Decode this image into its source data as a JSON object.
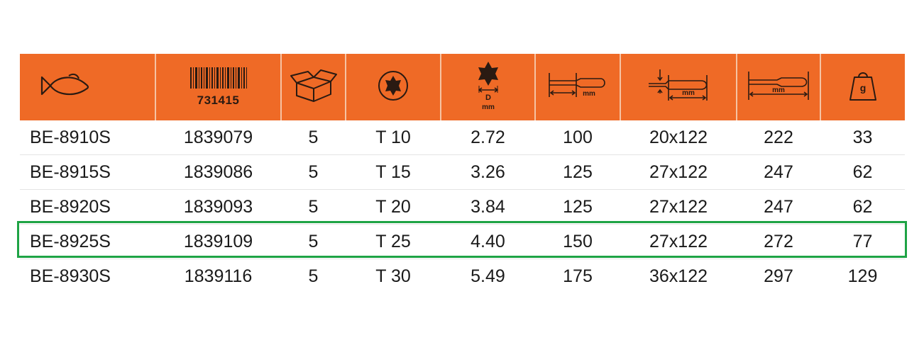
{
  "header": {
    "barcode_number": "731415",
    "icons": [
      "fish-icon",
      "barcode-icon",
      "package-box-icon",
      "torx-tip-icon",
      "torx-diameter-icon",
      "blade-length-icon",
      "handle-size-icon",
      "total-length-icon",
      "weight-icon"
    ],
    "diameter_label": "D",
    "unit_mm": "mm",
    "weight_label": "g"
  },
  "rows": [
    {
      "model": "BE-8910S",
      "ean": "1839079",
      "pack": "5",
      "torx": "T 10",
      "d": "2.72",
      "blade": "100",
      "handle": "20x122",
      "length": "222",
      "weight": "33"
    },
    {
      "model": "BE-8915S",
      "ean": "1839086",
      "pack": "5",
      "torx": "T 15",
      "d": "3.26",
      "blade": "125",
      "handle": "27x122",
      "length": "247",
      "weight": "62"
    },
    {
      "model": "BE-8920S",
      "ean": "1839093",
      "pack": "5",
      "torx": "T 20",
      "d": "3.84",
      "blade": "125",
      "handle": "27x122",
      "length": "247",
      "weight": "62"
    },
    {
      "model": "BE-8925S",
      "ean": "1839109",
      "pack": "5",
      "torx": "T 25",
      "d": "4.40",
      "blade": "150",
      "handle": "27x122",
      "length": "272",
      "weight": "77",
      "highlighted": true
    },
    {
      "model": "BE-8930S",
      "ean": "1839116",
      "pack": "5",
      "torx": "T 30",
      "d": "5.49",
      "blade": "175",
      "handle": "36x122",
      "length": "297",
      "weight": "129"
    }
  ],
  "colors": {
    "header_bg": "#ef6a26",
    "icon_stroke": "#2a1a12",
    "highlight_border": "#1ea345"
  }
}
